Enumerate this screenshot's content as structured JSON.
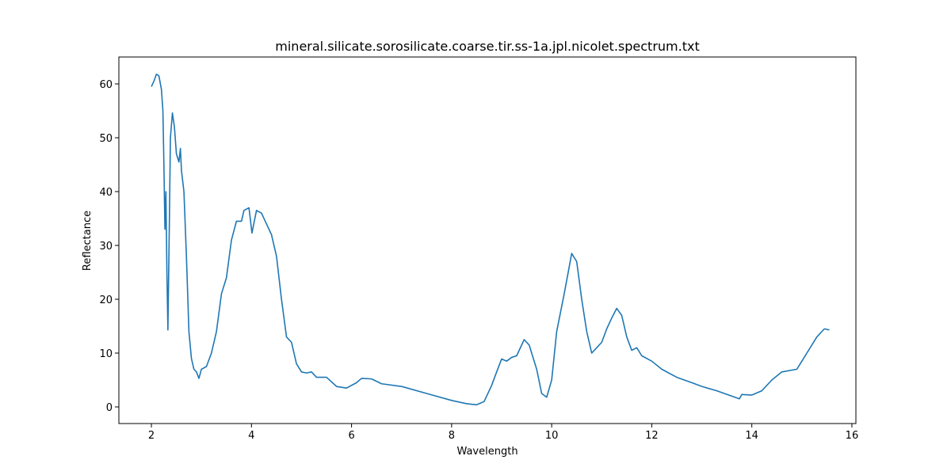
{
  "chart_data": {
    "type": "line",
    "title": "mineral.silicate.sorosilicate.coarse.tir.ss-1a.jpl.nicolet.spectrum.txt",
    "xlabel": "Wavelength",
    "ylabel": "Reflectance",
    "xlim": [
      1.35,
      16.08
    ],
    "ylim": [
      -3.09,
      65.0
    ],
    "xticks": [
      2,
      4,
      6,
      8,
      10,
      12,
      14,
      16
    ],
    "yticks": [
      0,
      10,
      20,
      30,
      40,
      50,
      60
    ],
    "series": [
      {
        "color": "#1f77b4",
        "x": [
          2.0,
          2.05,
          2.1,
          2.15,
          2.2,
          2.23,
          2.25,
          2.27,
          2.29,
          2.31,
          2.33,
          2.36,
          2.38,
          2.42,
          2.46,
          2.5,
          2.55,
          2.58,
          2.6,
          2.65,
          2.7,
          2.75,
          2.8,
          2.85,
          2.9,
          2.95,
          3.0,
          3.1,
          3.2,
          3.3,
          3.4,
          3.5,
          3.6,
          3.7,
          3.8,
          3.85,
          3.95,
          4.01,
          4.1,
          4.2,
          4.3,
          4.4,
          4.5,
          4.6,
          4.7,
          4.8,
          4.9,
          5.0,
          5.1,
          5.2,
          5.3,
          5.5,
          5.7,
          5.9,
          6.1,
          6.2,
          6.4,
          6.6,
          7.0,
          7.5,
          8.0,
          8.3,
          8.5,
          8.65,
          8.8,
          8.9,
          9.0,
          9.1,
          9.2,
          9.3,
          9.45,
          9.55,
          9.7,
          9.8,
          9.9,
          10.0,
          10.1,
          10.25,
          10.4,
          10.5,
          10.6,
          10.7,
          10.8,
          10.9,
          11.0,
          11.1,
          11.2,
          11.3,
          11.4,
          11.5,
          11.6,
          11.7,
          11.8,
          12.0,
          12.2,
          12.5,
          12.8,
          13.0,
          13.3,
          13.6,
          13.75,
          13.8,
          14.0,
          14.2,
          14.4,
          14.6,
          14.9,
          15.0,
          15.1,
          15.3,
          15.45,
          15.55
        ],
        "values": [
          59.5,
          60.5,
          61.8,
          61.5,
          59,
          55,
          45,
          33,
          40,
          25,
          14.3,
          35,
          50,
          54.6,
          52,
          47,
          45.5,
          48,
          44,
          40,
          28,
          14,
          9,
          7,
          6.5,
          5.3,
          7,
          7.5,
          10,
          14,
          21,
          24,
          31,
          34.5,
          34.5,
          36.5,
          37,
          32.3,
          36.5,
          36,
          34,
          32,
          28,
          20,
          13,
          12,
          8,
          6.5,
          6.3,
          6.5,
          5.5,
          5.5,
          3.8,
          3.5,
          4.5,
          5.3,
          5.2,
          4.3,
          3.8,
          2.5,
          1.2,
          0.6,
          0.4,
          1,
          4,
          6.5,
          8.9,
          8.5,
          9.2,
          9.5,
          12.5,
          11.5,
          7,
          2.5,
          1.8,
          5,
          14,
          21,
          28.5,
          27,
          20,
          14,
          10,
          11,
          12,
          14.5,
          16.5,
          18.3,
          17,
          13,
          10.5,
          11,
          9.5,
          8.5,
          7,
          5.5,
          4.5,
          3.8,
          3,
          2,
          1.5,
          2.3,
          2.2,
          3,
          5,
          6.5,
          7,
          8.5,
          10,
          13,
          14.5,
          14.3
        ]
      }
    ]
  }
}
